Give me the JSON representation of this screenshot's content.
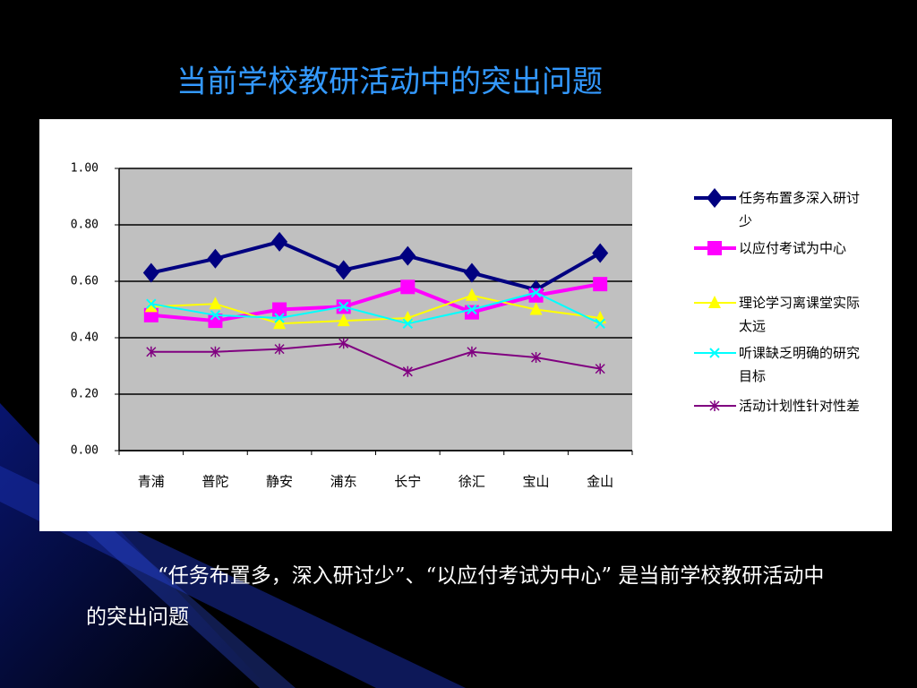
{
  "chart_data": {
    "type": "line",
    "title": "当前学校教研活动中的突出问题",
    "categories": [
      "青浦",
      "普陀",
      "静安",
      "浦东",
      "长宁",
      "徐汇",
      "宝山",
      "金山"
    ],
    "series": [
      {
        "name": "任务布置多深入研讨少",
        "color": "#000080",
        "marker": "diamond",
        "values": [
          0.63,
          0.68,
          0.74,
          0.64,
          0.69,
          0.63,
          0.57,
          0.7
        ]
      },
      {
        "name": "以应付考试为中心",
        "color": "#ff00ff",
        "marker": "square",
        "values": [
          0.48,
          0.46,
          0.5,
          0.51,
          0.58,
          0.49,
          0.55,
          0.59
        ]
      },
      {
        "name": "理论学习离课堂实际太远",
        "color": "#ffff00",
        "marker": "triangle",
        "values": [
          0.51,
          0.52,
          0.45,
          0.46,
          0.47,
          0.55,
          0.5,
          0.47
        ]
      },
      {
        "name": "听课缺乏明确的研究目标",
        "color": "#00ffff",
        "marker": "x",
        "values": [
          0.52,
          0.48,
          0.47,
          0.51,
          0.45,
          0.5,
          0.56,
          0.45
        ]
      },
      {
        "name": "活动计划性针对性差",
        "color": "#800080",
        "marker": "star",
        "values": [
          0.35,
          0.35,
          0.36,
          0.38,
          0.28,
          0.35,
          0.33,
          0.29
        ]
      }
    ],
    "ylim": [
      0,
      1
    ],
    "yticks": [
      {
        "value": 0,
        "label": "0.00"
      },
      {
        "value": 0.2,
        "label": "0.20"
      },
      {
        "value": 0.4,
        "label": "0.40"
      },
      {
        "value": 0.6,
        "label": "0.60"
      },
      {
        "value": 0.8,
        "label": "0.80"
      },
      {
        "value": 1,
        "label": "1.00"
      }
    ],
    "grid": true,
    "legend": "right"
  },
  "caption": "“任务布置多，深入研讨少”、“以应付考试为中心” 是当前学校教研活动中的突出问题"
}
